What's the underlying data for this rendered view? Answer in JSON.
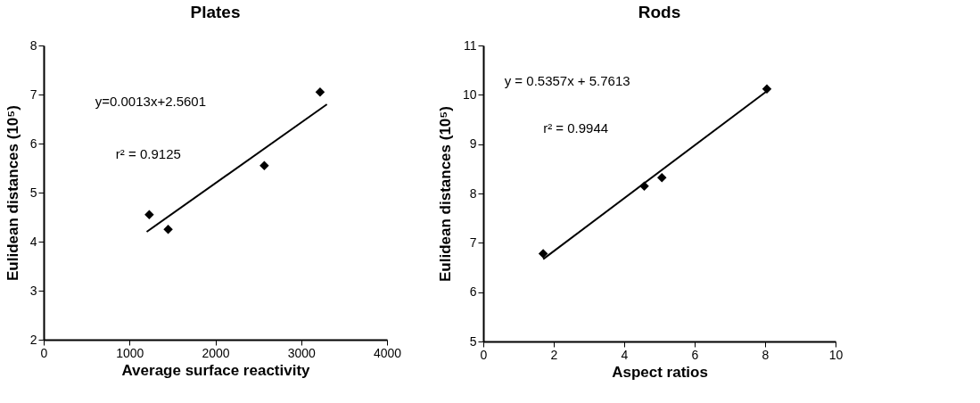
{
  "chart_data": [
    {
      "type": "scatter",
      "title": "Plates",
      "xlabel": "Average surface reactivity",
      "ylabel": "Eulidean distances (10⁵)",
      "xlim": [
        0,
        4000
      ],
      "xticks": [
        0,
        1000,
        2000,
        3000,
        4000
      ],
      "ylim": [
        2,
        8
      ],
      "yticks": [
        2,
        3,
        4,
        5,
        6,
        7,
        8
      ],
      "grid": false,
      "annotations": [
        "y=0.0013x+2.5601",
        "r² = 0.9125"
      ],
      "series": [
        {
          "color": "#000000",
          "marker": "diamond",
          "x": [
            1230,
            1450,
            2570,
            3220
          ],
          "values": [
            4.55,
            4.25,
            5.55,
            7.05
          ]
        },
        {
          "type": "line",
          "color": "#000000",
          "x": [
            1200,
            3300
          ],
          "values": [
            4.2,
            6.8
          ]
        }
      ]
    },
    {
      "type": "scatter",
      "title": "Rods",
      "xlabel": "Aspect ratios",
      "ylabel": "Eulidean distances (10⁵)",
      "xlim": [
        0,
        10
      ],
      "xticks": [
        0,
        2,
        4,
        6,
        8,
        10
      ],
      "ylim": [
        5,
        11
      ],
      "yticks": [
        5,
        6,
        7,
        8,
        9,
        10,
        11
      ],
      "grid": false,
      "annotations": [
        "y = 0.5357x + 5.7613",
        "r² = 0.9944"
      ],
      "series": [
        {
          "color": "#000000",
          "marker": "diamond",
          "x": [
            1.7,
            4.57,
            5.07,
            8.05
          ],
          "values": [
            6.78,
            8.15,
            8.32,
            10.12
          ]
        },
        {
          "type": "line",
          "color": "#000000",
          "x": [
            1.7,
            8.1
          ],
          "values": [
            6.67,
            10.1
          ]
        }
      ]
    }
  ]
}
